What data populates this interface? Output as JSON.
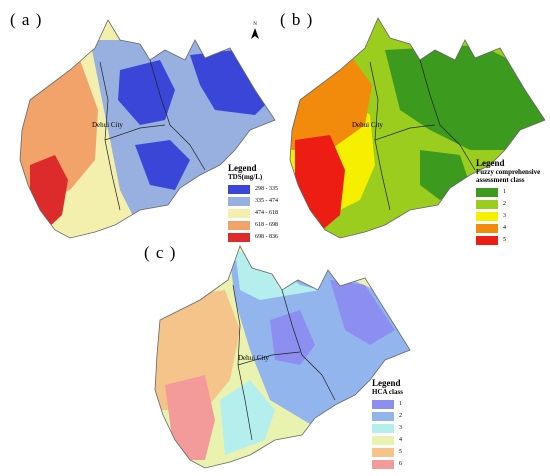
{
  "panels": {
    "a": {
      "label": "( a )",
      "city": "Dehui City",
      "legend_title": "Legend",
      "legend_sub": "TDS(mg/L)",
      "classes": [
        {
          "text": "298 - 335",
          "color": "#3a46d8"
        },
        {
          "text": "335 - 474",
          "color": "#97b0df"
        },
        {
          "text": "474 - 618",
          "color": "#f3f0ae"
        },
        {
          "text": "618 - 698",
          "color": "#f2a36a"
        },
        {
          "text": "698 - 836",
          "color": "#dd2a2a"
        }
      ]
    },
    "b": {
      "label": "( b )",
      "city": "Dehui City",
      "legend_title": "Legend",
      "legend_sub": "Fuzzy comprehensive assessment class",
      "classes": [
        {
          "text": "1",
          "color": "#3c9a1f"
        },
        {
          "text": "2",
          "color": "#9acd1e"
        },
        {
          "text": "3",
          "color": "#f4f000"
        },
        {
          "text": "4",
          "color": "#f28a0c"
        },
        {
          "text": "5",
          "color": "#ee1d14"
        }
      ]
    },
    "c": {
      "label": "( c )",
      "city": "Dehui City",
      "legend_title": "Legend",
      "legend_sub": "HCA class",
      "classes": [
        {
          "text": "1",
          "color": "#8c8ff0"
        },
        {
          "text": "2",
          "color": "#93b5ee"
        },
        {
          "text": "3",
          "color": "#b4efee"
        },
        {
          "text": "4",
          "color": "#eaf2b0"
        },
        {
          "text": "5",
          "color": "#f5c48a"
        },
        {
          "text": "6",
          "color": "#f39a9a"
        }
      ]
    }
  },
  "north_arrow": "N"
}
